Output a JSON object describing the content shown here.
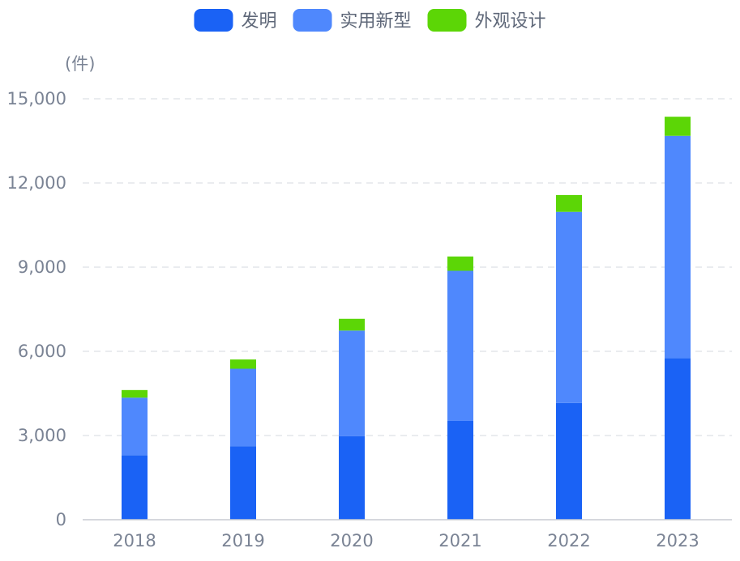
{
  "chart_data": {
    "type": "bar",
    "stacked": true,
    "unit_label": "(件)",
    "categories": [
      "2018",
      "2019",
      "2020",
      "2021",
      "2022",
      "2023"
    ],
    "series": [
      {
        "name": "发明",
        "color": "#1a62f5",
        "values": [
          2300,
          2620,
          2980,
          3520,
          4160,
          5760
        ]
      },
      {
        "name": "实用新型",
        "color": "#4f88fd",
        "values": [
          2050,
          2760,
          3760,
          5350,
          6810,
          7920
        ]
      },
      {
        "name": "外观设计",
        "color": "#5cd606",
        "values": [
          270,
          330,
          420,
          510,
          600,
          680
        ]
      }
    ],
    "ylim": [
      0,
      15000
    ],
    "yticks": [
      "0",
      "3,000",
      "6,000",
      "9,000",
      "12,000",
      "15,000"
    ],
    "ytick_values": [
      0,
      3000,
      6000,
      9000,
      12000,
      15000
    ],
    "grid": true,
    "legend_position": "top-center"
  }
}
